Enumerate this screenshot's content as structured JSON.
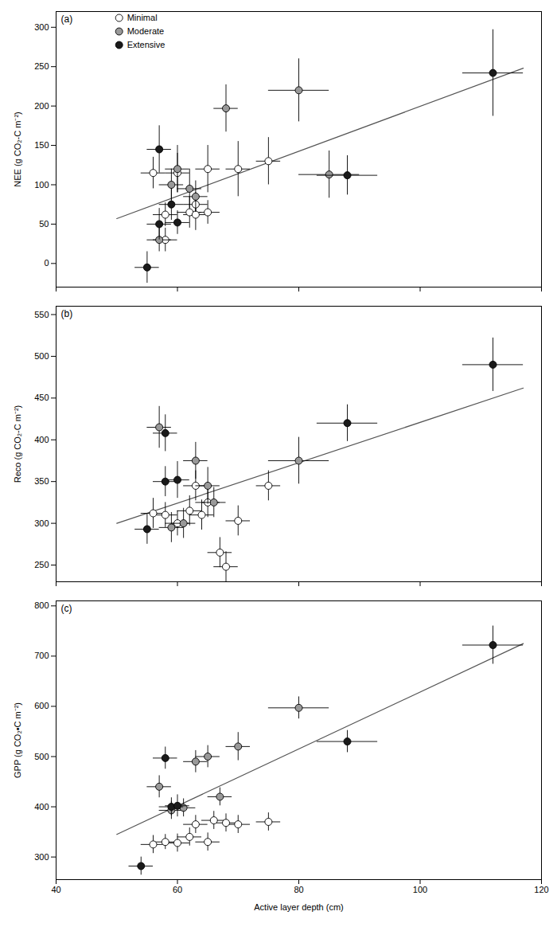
{
  "chart_data": [
    {
      "type": "scatter",
      "title": "(a)",
      "ylabel": "NEE (g CO₂-C m⁻²)",
      "xlim": [
        40,
        120
      ],
      "xticks": [
        40,
        60,
        80,
        100,
        120
      ],
      "ylim": [
        -30,
        320
      ],
      "yticks": [
        0,
        50,
        100,
        150,
        200,
        250,
        300
      ],
      "grid": false,
      "tick_labels": "y",
      "legend": "upper left",
      "marker": "o",
      "series": [
        {
          "name": "Minimal",
          "color": "white",
          "x": [
            56,
            58,
            58,
            60,
            62,
            63,
            63,
            65,
            65,
            70,
            75
          ],
          "x_error": [
            2,
            2,
            2,
            2,
            2,
            2,
            2,
            2,
            2,
            2,
            2
          ],
          "values": [
            115,
            62,
            30,
            115,
            65,
            62,
            75,
            120,
            65,
            120,
            130
          ],
          "y_error": [
            20,
            15,
            15,
            25,
            20,
            20,
            15,
            30,
            15,
            35,
            30
          ]
        },
        {
          "name": "Moderate",
          "color": "#999999",
          "x": [
            57,
            59,
            60,
            62,
            63,
            68,
            80,
            85
          ],
          "x_error": [
            2,
            2,
            2,
            2,
            2,
            2,
            5,
            5
          ],
          "values": [
            30,
            100,
            120,
            95,
            85,
            197,
            220,
            113
          ],
          "y_error": [
            15,
            20,
            30,
            25,
            20,
            30,
            40,
            30
          ]
        },
        {
          "name": "Extensive",
          "color": "#1a1a1a",
          "x": [
            55,
            57,
            57,
            59,
            60,
            88,
            112
          ],
          "x_error": [
            2,
            2,
            2,
            2,
            2,
            5,
            5
          ],
          "values": [
            -5,
            145,
            50,
            75,
            52,
            112,
            242
          ],
          "y_error": [
            20,
            30,
            20,
            20,
            15,
            25,
            55
          ]
        }
      ],
      "fit": {
        "type": "line",
        "color": "#555555",
        "x": [
          50,
          117
        ],
        "values": [
          57,
          248
        ]
      }
    },
    {
      "type": "scatter",
      "title": "(b)",
      "ylabel": "Reco (g CO₂-C m⁻²)",
      "xlim": [
        40,
        120
      ],
      "xticks": [
        40,
        60,
        80,
        100,
        120
      ],
      "ylim": [
        230,
        560
      ],
      "yticks": [
        250,
        300,
        350,
        400,
        450,
        500,
        550
      ],
      "grid": false,
      "tick_labels": "y",
      "marker": "o",
      "series": [
        {
          "name": "Minimal",
          "color": "white",
          "x": [
            56,
            58,
            60,
            62,
            63,
            64,
            65,
            67,
            68,
            70,
            75
          ],
          "x_error": [
            2,
            2,
            2,
            2,
            2,
            2,
            2,
            2,
            2,
            2,
            2
          ],
          "values": [
            312,
            310,
            300,
            315,
            345,
            310,
            325,
            265,
            248,
            303,
            345
          ],
          "y_error": [
            18,
            15,
            15,
            18,
            18,
            18,
            18,
            18,
            18,
            18,
            18
          ]
        },
        {
          "name": "Moderate",
          "color": "#999999",
          "x": [
            57,
            59,
            61,
            63,
            65,
            66,
            80
          ],
          "x_error": [
            2,
            2,
            2,
            2,
            2,
            2,
            5
          ],
          "values": [
            415,
            295,
            300,
            375,
            345,
            325,
            375
          ],
          "y_error": [
            25,
            18,
            18,
            22,
            22,
            18,
            28
          ]
        },
        {
          "name": "Extensive",
          "color": "#1a1a1a",
          "x": [
            55,
            58,
            58,
            60,
            88,
            112
          ],
          "x_error": [
            2,
            2,
            2,
            2,
            5,
            5
          ],
          "values": [
            293,
            408,
            350,
            352,
            420,
            490
          ],
          "y_error": [
            18,
            22,
            18,
            22,
            22,
            32
          ]
        }
      ],
      "fit": {
        "type": "line",
        "color": "#555555",
        "x": [
          50,
          117
        ],
        "values": [
          300,
          462
        ]
      }
    },
    {
      "type": "scatter",
      "title": "(c)",
      "ylabel": "GPP (g CO₂•C m⁻²)",
      "xlabel": "Active layer depth (cm)",
      "xlim": [
        40,
        120
      ],
      "xticks": [
        40,
        60,
        80,
        100,
        120
      ],
      "ylim": [
        255,
        810
      ],
      "yticks": [
        300,
        400,
        500,
        600,
        700,
        800
      ],
      "grid": false,
      "marker": "o",
      "series": [
        {
          "name": "Minimal",
          "color": "white",
          "x": [
            56,
            58,
            60,
            62,
            63,
            65,
            66,
            68,
            70,
            75
          ],
          "x_error": [
            2,
            2,
            2,
            2,
            2,
            2,
            2,
            2,
            2,
            2
          ],
          "values": [
            325,
            330,
            328,
            340,
            365,
            330,
            373,
            368,
            365,
            370
          ],
          "y_error": [
            18,
            15,
            18,
            18,
            18,
            18,
            18,
            18,
            18,
            18
          ]
        },
        {
          "name": "Moderate",
          "color": "#999999",
          "x": [
            57,
            59,
            61,
            63,
            65,
            67,
            70,
            80
          ],
          "x_error": [
            2,
            2,
            2,
            2,
            2,
            2,
            2,
            5
          ],
          "values": [
            440,
            393,
            398,
            490,
            500,
            420,
            520,
            597
          ],
          "y_error": [
            22,
            18,
            18,
            22,
            22,
            18,
            28,
            22
          ]
        },
        {
          "name": "Extensive",
          "color": "#1a1a1a",
          "x": [
            54,
            58,
            59,
            60,
            88,
            112
          ],
          "x_error": [
            2,
            2,
            2,
            2,
            5,
            5
          ],
          "values": [
            282,
            497,
            400,
            402,
            530,
            722
          ],
          "y_error": [
            18,
            22,
            18,
            22,
            22,
            38
          ]
        }
      ],
      "fit": {
        "type": "line",
        "color": "#555555",
        "x": [
          50,
          117
        ],
        "values": [
          345,
          725
        ]
      }
    }
  ]
}
